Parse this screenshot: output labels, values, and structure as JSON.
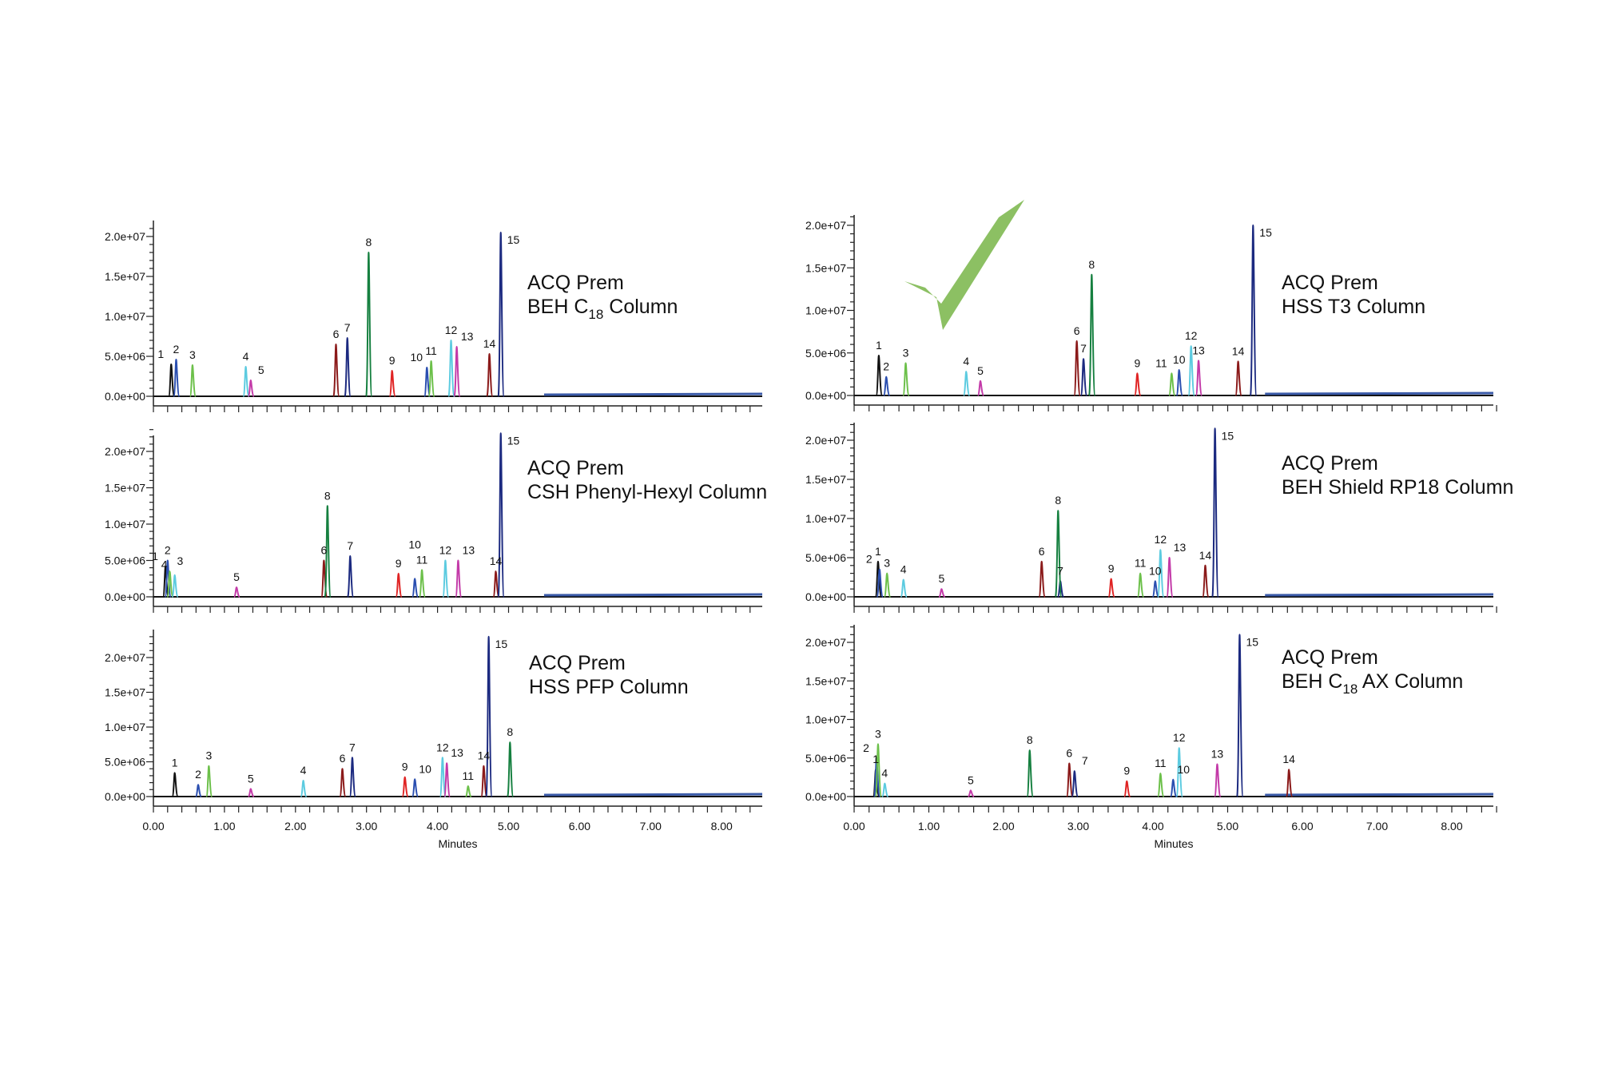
{
  "chart_data": [
    {
      "type": "line",
      "title_lines": [
        "ACQ Prem",
        "BEH C",
        "18",
        " Column"
      ],
      "xlabel": "",
      "ylim": [
        0,
        21000000
      ],
      "xlim": [
        0,
        8.55
      ],
      "peaks": [
        [
          1,
          0.25,
          4.0
        ],
        [
          2,
          0.32,
          4.6
        ],
        [
          3,
          0.55,
          3.9
        ],
        [
          4,
          1.3,
          3.7
        ],
        [
          5,
          1.37,
          2.0
        ],
        [
          6,
          2.57,
          6.5
        ],
        [
          7,
          2.73,
          7.3
        ],
        [
          8,
          3.03,
          18.0
        ],
        [
          9,
          3.36,
          3.2
        ],
        [
          10,
          3.85,
          3.6
        ],
        [
          11,
          3.91,
          4.4
        ],
        [
          12,
          4.19,
          7.0
        ],
        [
          13,
          4.27,
          6.2
        ],
        [
          14,
          4.73,
          5.3
        ],
        [
          15,
          4.89,
          20.5
        ]
      ]
    },
    {
      "type": "line",
      "title_lines": [
        "ACQ Prem",
        "CSH Phenyl-Hexyl Column",
        "",
        ""
      ],
      "xlabel": "",
      "ylim": [
        0,
        23000000
      ],
      "xlim": [
        0,
        8.55
      ],
      "peaks": [
        [
          1,
          0.17,
          4.2
        ],
        [
          2,
          0.2,
          5.0
        ],
        [
          3,
          0.23,
          3.5
        ],
        [
          4,
          0.3,
          3.0
        ],
        [
          5,
          1.17,
          1.3
        ],
        [
          6,
          2.4,
          5.0
        ],
        [
          7,
          2.77,
          5.6
        ],
        [
          8,
          2.45,
          12.5
        ],
        [
          9,
          3.45,
          3.2
        ],
        [
          10,
          3.68,
          2.5
        ],
        [
          11,
          3.78,
          3.7
        ],
        [
          12,
          4.11,
          5.0
        ],
        [
          13,
          4.29,
          5.0
        ],
        [
          14,
          4.82,
          3.5
        ],
        [
          15,
          4.89,
          22.5
        ]
      ]
    },
    {
      "type": "line",
      "title_lines": [
        "ACQ Prem",
        "HSS PFP Column",
        "",
        ""
      ],
      "xlabel": "Minutes",
      "ylim": [
        0,
        23000000
      ],
      "xlim": [
        0,
        8.55
      ],
      "peaks": [
        [
          1,
          0.3,
          3.4
        ],
        [
          2,
          0.63,
          1.7
        ],
        [
          3,
          0.78,
          4.4
        ],
        [
          4,
          2.11,
          2.3
        ],
        [
          5,
          1.37,
          1.1
        ],
        [
          6,
          2.66,
          4.0
        ],
        [
          7,
          2.8,
          5.6
        ],
        [
          8,
          5.02,
          7.8
        ],
        [
          9,
          3.54,
          2.8
        ],
        [
          10,
          3.68,
          2.5
        ],
        [
          11,
          4.43,
          1.5
        ],
        [
          12,
          4.07,
          5.6
        ],
        [
          13,
          4.13,
          4.8
        ],
        [
          14,
          4.65,
          4.4
        ],
        [
          15,
          4.72,
          23.0
        ]
      ]
    },
    {
      "type": "line",
      "title_lines": [
        "ACQ Prem",
        "HSS T3 Column",
        "",
        ""
      ],
      "xlabel": "",
      "ylim": [
        0,
        21000000
      ],
      "xlim": [
        0,
        8.6
      ],
      "peaks": [
        [
          1,
          0.33,
          4.7
        ],
        [
          2,
          0.43,
          2.2
        ],
        [
          3,
          0.69,
          3.8
        ],
        [
          4,
          1.5,
          2.8
        ],
        [
          5,
          1.69,
          1.7
        ],
        [
          6,
          2.98,
          6.4
        ],
        [
          7,
          3.07,
          4.3
        ],
        [
          8,
          3.18,
          14.2
        ],
        [
          9,
          3.79,
          2.6
        ],
        [
          10,
          4.35,
          3.0
        ],
        [
          11,
          4.25,
          2.6
        ],
        [
          12,
          4.51,
          5.8
        ],
        [
          13,
          4.61,
          4.1
        ],
        [
          14,
          5.14,
          4.0
        ],
        [
          15,
          5.34,
          20.0
        ]
      ]
    },
    {
      "type": "line",
      "title_lines": [
        "ACQ Prem",
        "BEH Shield RP18 Column",
        "",
        ""
      ],
      "xlabel": "",
      "ylim": [
        0,
        22000000
      ],
      "xlim": [
        0,
        8.6
      ],
      "peaks": [
        [
          1,
          0.32,
          4.5
        ],
        [
          2,
          0.34,
          3.5
        ],
        [
          3,
          0.44,
          3.0
        ],
        [
          4,
          0.66,
          2.2
        ],
        [
          5,
          1.17,
          1.0
        ],
        [
          6,
          2.51,
          4.5
        ],
        [
          7,
          2.76,
          2.0
        ],
        [
          8,
          2.73,
          11.0
        ],
        [
          9,
          3.44,
          2.3
        ],
        [
          10,
          4.03,
          2.0
        ],
        [
          11,
          3.83,
          3.0
        ],
        [
          12,
          4.1,
          6.0
        ],
        [
          13,
          4.22,
          5.0
        ],
        [
          14,
          4.7,
          4.0
        ],
        [
          15,
          4.83,
          21.5
        ]
      ]
    },
    {
      "type": "line",
      "title_lines": [
        "ACQ Prem",
        "BEH C",
        "18",
        " AX Column"
      ],
      "xlabel": "Minutes",
      "ylim": [
        0,
        22000000
      ],
      "xlim": [
        0,
        8.6
      ],
      "peaks": [
        [
          1,
          0.29,
          3.5
        ],
        [
          2,
          0.3,
          5.0
        ],
        [
          3,
          0.32,
          6.8
        ],
        [
          4,
          0.41,
          1.7
        ],
        [
          5,
          1.56,
          0.8
        ],
        [
          6,
          2.88,
          4.3
        ],
        [
          7,
          2.95,
          3.3
        ],
        [
          8,
          2.35,
          6.0
        ],
        [
          9,
          3.65,
          2.0
        ],
        [
          10,
          4.27,
          2.2
        ],
        [
          11,
          4.1,
          3.0
        ],
        [
          12,
          4.35,
          6.3
        ],
        [
          13,
          4.86,
          4.2
        ],
        [
          14,
          5.82,
          3.5
        ],
        [
          15,
          5.16,
          21.0
        ]
      ]
    }
  ],
  "y_ticks": [
    "0.0e+00",
    "5.0e+06",
    "1.0e+07",
    "1.5e+07",
    "2.0e+07"
  ],
  "x_ticks": [
    "0.00",
    "1.00",
    "2.00",
    "3.00",
    "4.00",
    "5.00",
    "6.00",
    "7.00",
    "8.00"
  ],
  "peak_units": "e+06",
  "peak_colors": {
    "1": "#111111",
    "2": "#2b4fb0",
    "3": "#6cc04a",
    "4": "#5ccbe0",
    "5": "#c33aa8",
    "6": "#8b1a1a",
    "7": "#1c2a80",
    "8": "#168040",
    "9": "#e02424",
    "10": "#2b4fb0",
    "11": "#6cc04a",
    "12": "#5ccbe0",
    "13": "#c33aa8",
    "14": "#8b1a1a",
    "15": "#1c2a80"
  },
  "checkmark_color": "#8cc063"
}
